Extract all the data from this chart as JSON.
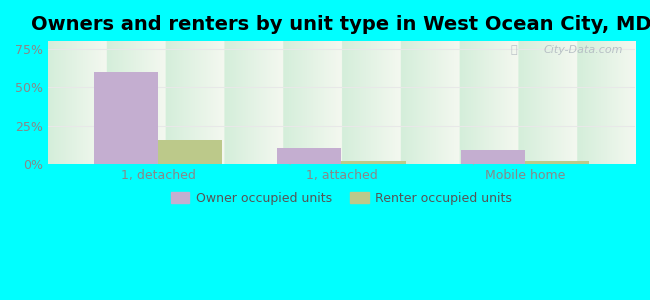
{
  "title": "Owners and renters by unit type in West Ocean City, MD",
  "categories": [
    "1, detached",
    "1, attached",
    "Mobile home"
  ],
  "owner_values": [
    0.598,
    0.105,
    0.09
  ],
  "renter_values": [
    0.155,
    0.018,
    0.018
  ],
  "owner_color": "#c4aed0",
  "renter_color": "#bcc98a",
  "bar_width": 0.35,
  "ylim": [
    0,
    0.8
  ],
  "yticks": [
    0,
    0.25,
    0.5,
    0.75
  ],
  "ytick_labels": [
    "0%",
    "25%",
    "50%",
    "75%"
  ],
  "legend_owner": "Owner occupied units",
  "legend_renter": "Renter occupied units",
  "bg_color": "#00ffff",
  "grad_top": "#d4eeda",
  "grad_bottom": "#f4f8f0",
  "watermark": "City-Data.com",
  "title_fontsize": 14,
  "axis_label_fontsize": 9,
  "tick_fontsize": 9,
  "tick_color": "#888888",
  "gridline_color": "#e8e8e8"
}
